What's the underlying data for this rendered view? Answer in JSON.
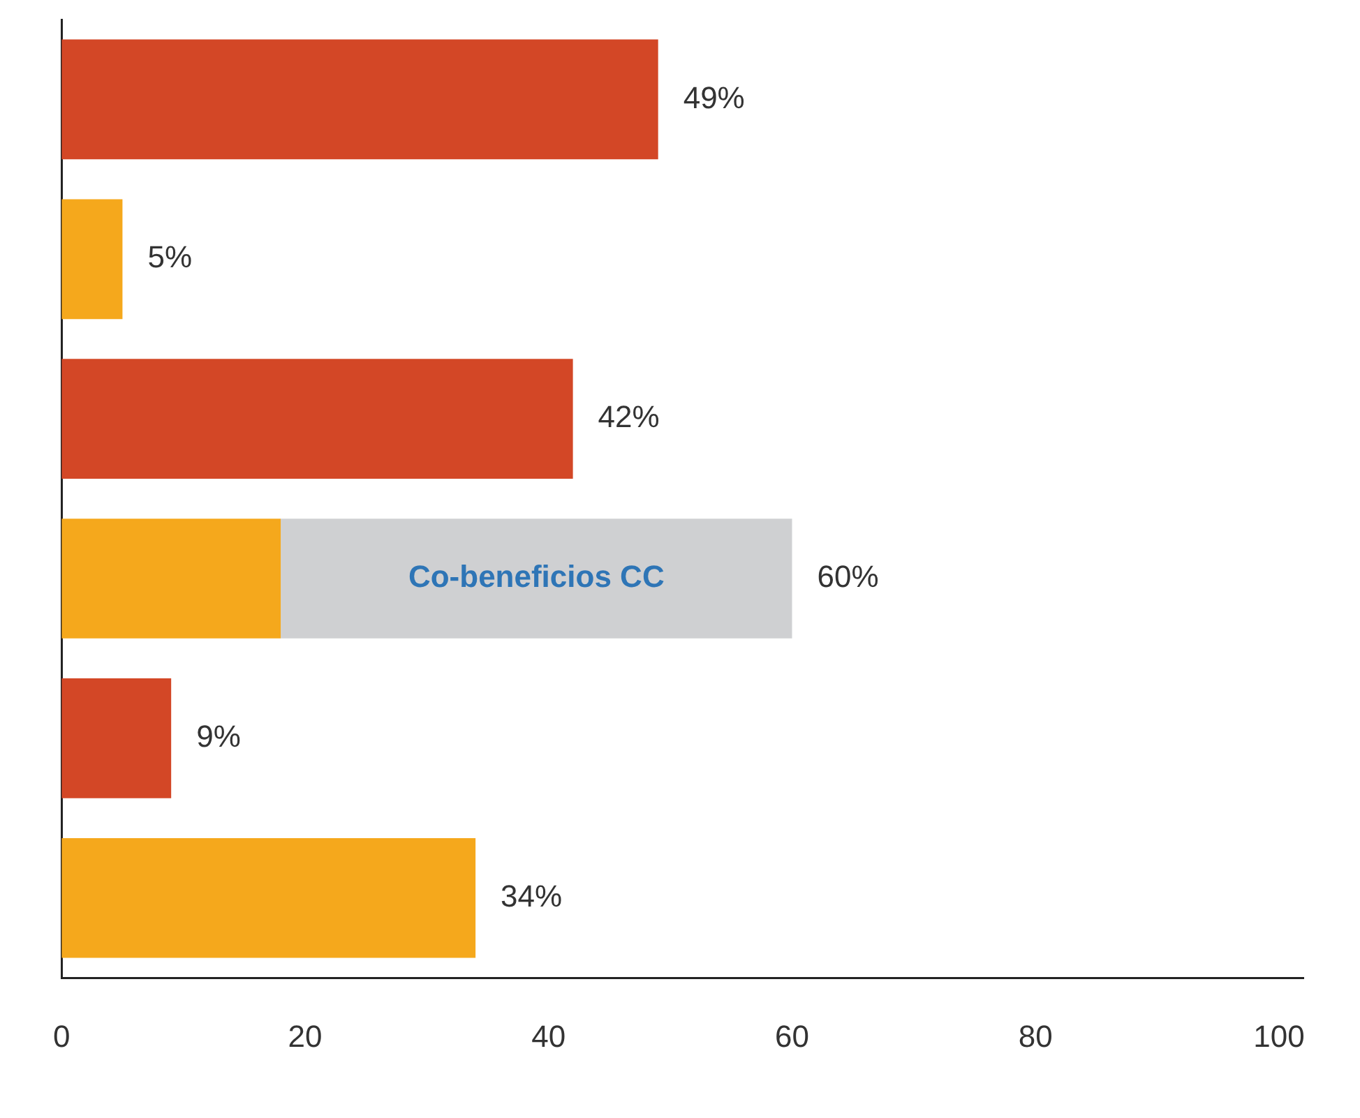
{
  "chart_data": {
    "type": "bar",
    "orientation": "horizontal",
    "stacked": true,
    "categories": [
      null,
      null,
      null,
      null,
      null,
      null
    ],
    "series": [
      {
        "color": "#d34726",
        "values": [
          49,
          null,
          42,
          null,
          9,
          null
        ]
      },
      {
        "color": "#f5a81c",
        "values": [
          null,
          5,
          null,
          18,
          null,
          34
        ]
      },
      {
        "name": "Co-beneficios CC",
        "color": "#cfd0d2",
        "values": [
          null,
          null,
          null,
          42,
          null,
          null
        ]
      }
    ],
    "totals": [
      "49%",
      "5%",
      "42%",
      "60%",
      "9%",
      "34%"
    ],
    "xlim": [
      0,
      102
    ],
    "xticks": [
      0,
      20,
      40,
      60,
      80,
      100
    ],
    "grid": false,
    "legend": false
  }
}
